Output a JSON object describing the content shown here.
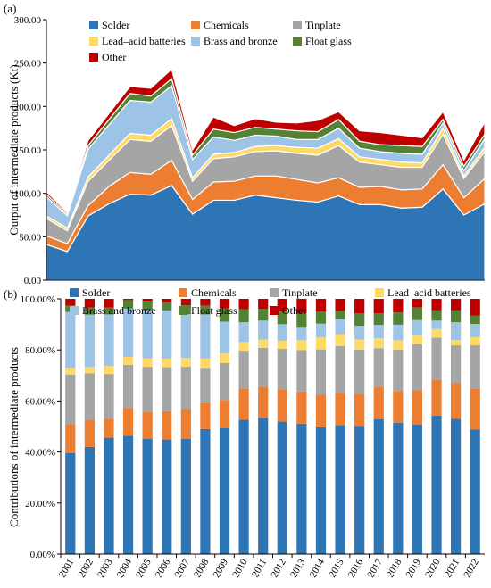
{
  "colors": {
    "Solder": "#2E75B6",
    "Chemicals": "#ED7D31",
    "Tinplate": "#A5A5A5",
    "Lead–acid batteries": "#FFD966",
    "Brass and bronze": "#9DC3E6",
    "Float glass": "#548235",
    "Other": "#C00000"
  },
  "chart_data": [
    {
      "type": "area",
      "stacked": true,
      "panel_label": "(a)",
      "ylabel": "Output of intermediate products (Kt)",
      "ylim": [
        0,
        300
      ],
      "yticks": [
        "0.00",
        "50.00",
        "100.00",
        "150.00",
        "200.00",
        "250.00",
        "300.00"
      ],
      "x": [
        "2001",
        "2002",
        "2003",
        "2004",
        "2005",
        "2006",
        "2007",
        "2008",
        "2009",
        "2010",
        "2011",
        "2012",
        "2013",
        "2014",
        "2015",
        "2016",
        "2017",
        "2018",
        "2019",
        "2020",
        "2021",
        "2022"
      ],
      "legend_position": "top-left",
      "series": [
        {
          "name": "Solder",
          "values": [
            41,
            33,
            74,
            88,
            99,
            98,
            109,
            76,
            92,
            92,
            98,
            95,
            92,
            90,
            97,
            87,
            87,
            83,
            84,
            105,
            75,
            88
          ]
        },
        {
          "name": "Chemicals",
          "values": [
            10,
            9,
            12,
            20,
            25,
            24,
            29,
            17,
            21,
            22,
            22,
            25,
            24,
            22,
            21,
            20,
            21,
            21,
            21,
            28,
            20,
            29
          ]
        },
        {
          "name": "Tinplate",
          "values": [
            20,
            15,
            28,
            30,
            38,
            38,
            40,
            21,
            27,
            28,
            28,
            29,
            30,
            32,
            37,
            29,
            25,
            26,
            25,
            35,
            22,
            31
          ]
        },
        {
          "name": "Lead–acid batteries",
          "values": [
            3,
            3,
            5,
            6,
            7,
            7,
            8,
            4,
            5,
            5,
            6,
            6,
            7,
            8,
            8,
            6,
            6,
            6,
            5,
            7,
            3,
            5
          ]
        },
        {
          "name": "Brass and bronze",
          "values": [
            22,
            14,
            32,
            35,
            38,
            38,
            38,
            21,
            20,
            14,
            13,
            11,
            9,
            10,
            12,
            10,
            9,
            10,
            10,
            6,
            6,
            10
          ]
        },
        {
          "name": "Float glass",
          "values": [
            3,
            2,
            4,
            6,
            8,
            7,
            8,
            5,
            9,
            9,
            9,
            8,
            10,
            9,
            10,
            8,
            8,
            9,
            9,
            4,
            5,
            5
          ]
        },
        {
          "name": "Other",
          "values": [
            3,
            2,
            6,
            7,
            8,
            9,
            11,
            6,
            14,
            8,
            10,
            8,
            9,
            13,
            9,
            12,
            14,
            12,
            10,
            9,
            7,
            14
          ]
        }
      ]
    },
    {
      "type": "bar",
      "stacked": true,
      "panel_label": "(b)",
      "ylabel": "Contributions of intermediate products",
      "ylim": [
        0,
        100
      ],
      "yticks": [
        "0.00%",
        "20.00%",
        "40.00%",
        "60.00%",
        "80.00%",
        "100.00%"
      ],
      "categories": [
        "2001",
        "2002",
        "2003",
        "2004",
        "2005",
        "2006",
        "2007",
        "2008",
        "2009",
        "2010",
        "2011",
        "2012",
        "2013",
        "2014",
        "2015",
        "2016",
        "2017",
        "2018",
        "2019",
        "2020",
        "2021",
        "2022"
      ],
      "legend_position": "top",
      "series": [
        {
          "name": "Solder",
          "values": [
            39.6,
            42.0,
            45.6,
            46.4,
            45.1,
            44.9,
            45.2,
            49.0,
            49.4,
            52.6,
            53.4,
            51.9,
            51.1,
            49.7,
            50.6,
            50.3,
            52.9,
            51.5,
            50.7,
            54.3,
            53.0,
            48.9
          ]
        },
        {
          "name": "Chemicals",
          "values": [
            11.4,
            10.6,
            7.5,
            10.9,
            10.6,
            11.1,
            11.6,
            10.1,
            11.0,
            12.1,
            12.0,
            12.7,
            12.6,
            12.7,
            12.6,
            12.3,
            12.6,
            12.4,
            13.6,
            13.9,
            14.1,
            15.9
          ]
        },
        {
          "name": "Tinplate",
          "values": [
            19.4,
            18.2,
            17.5,
            16.9,
            17.7,
            17.3,
            16.6,
            13.9,
            14.5,
            15.0,
            15.4,
            15.8,
            16.2,
            17.8,
            18.3,
            17.5,
            15.2,
            16.2,
            17.9,
            16.6,
            14.7,
            17.0
          ]
        },
        {
          "name": "Lead–acid batteries",
          "values": [
            2.6,
            2.6,
            3.1,
            3.1,
            3.3,
            3.3,
            3.5,
            3.6,
            3.7,
            3.4,
            3.3,
            3.2,
            3.9,
            4.7,
            4.7,
            4.0,
            3.9,
            3.7,
            3.4,
            3.4,
            2.1,
            3.2
          ]
        },
        {
          "name": "Brass and bronze",
          "values": [
            21.9,
            20.4,
            20.2,
            18.9,
            18.9,
            18.9,
            17.1,
            17.3,
            12.5,
            7.8,
            7.4,
            6.5,
            4.9,
            5.4,
            5.8,
            5.4,
            5.2,
            6.1,
            6.1,
            3.3,
            7.0,
            5.2
          ]
        },
        {
          "name": "Float glass",
          "values": [
            2.5,
            2.8,
            2.7,
            3.3,
            3.6,
            3.2,
            3.5,
            3.5,
            5.2,
            5.1,
            4.6,
            4.9,
            5.7,
            4.8,
            3.3,
            4.9,
            4.6,
            4.8,
            5.0,
            4.0,
            4.6,
            3.2
          ]
        },
        {
          "name": "Other",
          "values": [
            2.6,
            3.4,
            3.4,
            0.5,
            0.8,
            1.3,
            2.5,
            2.6,
            3.7,
            4.0,
            3.9,
            5.0,
            5.6,
            4.9,
            4.7,
            5.6,
            5.6,
            5.3,
            3.3,
            4.5,
            4.5,
            6.6
          ]
        }
      ]
    }
  ]
}
